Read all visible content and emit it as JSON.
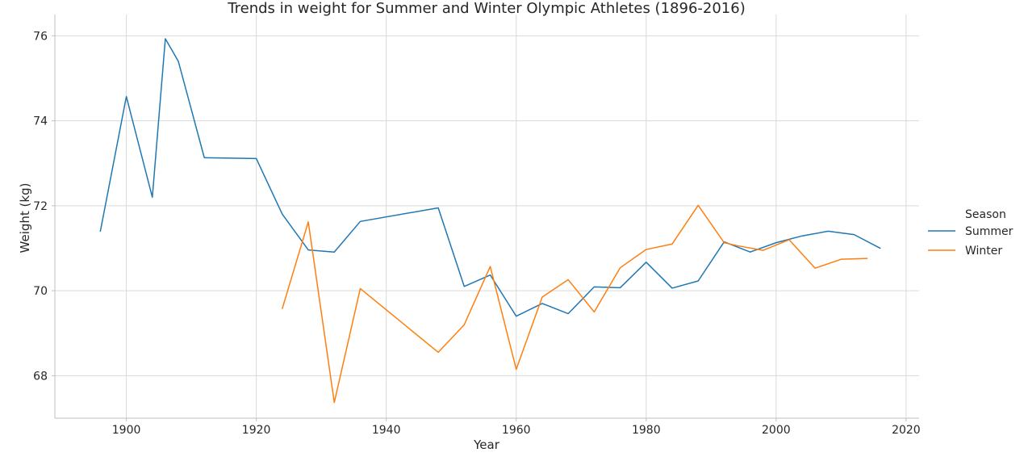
{
  "chart_data": {
    "type": "line",
    "title": "Trends in weight for Summer and Winter Olympic Athletes (1896-2016)",
    "xlabel": "Year",
    "ylabel": "Weight (kg)",
    "xlim": [
      1889,
      2022
    ],
    "ylim": [
      67.0,
      76.5
    ],
    "xticks": [
      1900,
      1920,
      1940,
      1960,
      1980,
      2000,
      2020
    ],
    "yticks": [
      68,
      70,
      72,
      74,
      76
    ],
    "grid": true,
    "legend_title": "Season",
    "legend_position": "right",
    "series": [
      {
        "name": "Summer",
        "color": "#1f77b4",
        "x": [
          1896,
          1900,
          1904,
          1906,
          1908,
          1912,
          1920,
          1924,
          1928,
          1932,
          1936,
          1948,
          1952,
          1956,
          1960,
          1964,
          1968,
          1972,
          1976,
          1980,
          1984,
          1988,
          1992,
          1996,
          2000,
          2004,
          2008,
          2012,
          2016
        ],
        "y": [
          71.4,
          74.57,
          72.2,
          75.93,
          75.4,
          73.13,
          73.11,
          71.8,
          70.96,
          70.91,
          71.63,
          71.95,
          70.1,
          70.37,
          69.4,
          69.7,
          69.46,
          70.09,
          70.07,
          70.67,
          70.06,
          70.23,
          71.15,
          70.91,
          71.13,
          71.29,
          71.4,
          71.32,
          71.0
        ]
      },
      {
        "name": "Winter",
        "color": "#ff7f0e",
        "x": [
          1924,
          1928,
          1932,
          1936,
          1948,
          1952,
          1956,
          1960,
          1964,
          1968,
          1972,
          1976,
          1980,
          1984,
          1988,
          1992,
          1994,
          1998,
          2002,
          2006,
          2010,
          2014
        ],
        "y": [
          69.58,
          71.62,
          67.37,
          70.05,
          68.55,
          69.2,
          70.57,
          68.15,
          69.85,
          70.26,
          69.5,
          70.54,
          70.97,
          71.1,
          72.01,
          71.13,
          71.06,
          70.95,
          71.2,
          70.53,
          70.74,
          70.76
        ]
      }
    ]
  }
}
